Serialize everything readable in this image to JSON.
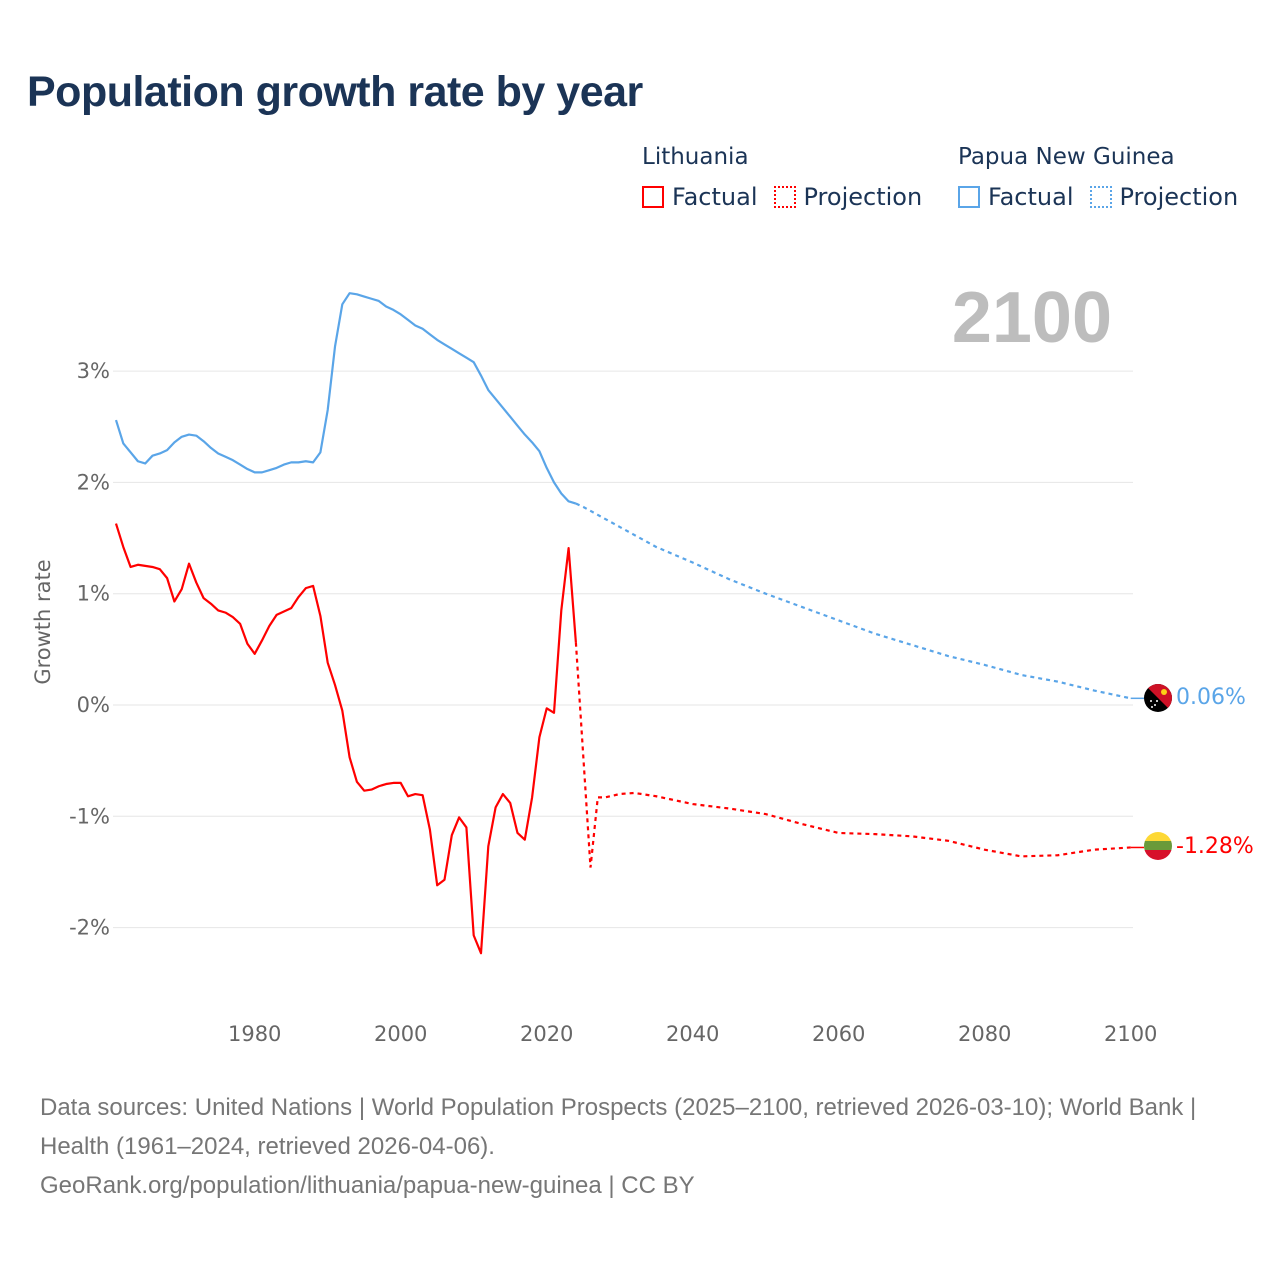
{
  "title": "Population growth rate by year",
  "legend": [
    {
      "country": "Lithuania",
      "factual": "Factual",
      "projection": "Projection",
      "color": "#ff0000"
    },
    {
      "country": "Papua New Guinea",
      "factual": "Factual",
      "projection": "Projection",
      "color": "#5aa5e8"
    }
  ],
  "chart_data": {
    "type": "line",
    "title": "Population growth rate by year",
    "year_label": "2100",
    "ylabel": "Growth rate",
    "xlabel": "",
    "xlim": [
      1961,
      2100
    ],
    "ylim": [
      -2.5,
      3.8
    ],
    "x_ticks": [
      "1980",
      "2000",
      "2020",
      "2040",
      "2060",
      "2080",
      "2100"
    ],
    "x_tick_values": [
      1980,
      2000,
      2020,
      2040,
      2060,
      2080,
      2100
    ],
    "y_ticks": [
      "3%",
      "2%",
      "1%",
      "0%",
      "-1%",
      "-2%"
    ],
    "y_tick_values": [
      3,
      2,
      1,
      0,
      -1,
      -2
    ],
    "grid": true,
    "series": [
      {
        "name": "Lithuania",
        "color": "#ff0000",
        "end_label": "-1.28%",
        "factual": {
          "x_start": 1961,
          "values": [
            1.63,
            1.42,
            1.24,
            1.26,
            1.25,
            1.24,
            1.22,
            1.14,
            0.93,
            1.04,
            1.27,
            1.1,
            0.96,
            0.91,
            0.85,
            0.83,
            0.79,
            0.73,
            0.55,
            0.46,
            0.58,
            0.71,
            0.81,
            0.84,
            0.87,
            0.97,
            1.05,
            1.07,
            0.8,
            0.38,
            0.18,
            -0.05,
            -0.47,
            -0.69,
            -0.77,
            -0.76,
            -0.73,
            -0.71,
            -0.7,
            -0.7,
            -0.82,
            -0.8,
            -0.81,
            -1.12,
            -1.62,
            -1.57,
            -1.17,
            -1.01,
            -1.1,
            -2.07,
            -2.23,
            -1.27,
            -0.92,
            -0.8,
            -0.88,
            -1.15,
            -1.21,
            -0.83,
            -0.29,
            -0.03,
            -0.07,
            0.85,
            1.41,
            0.56
          ]
        },
        "projection": {
          "x": [
            2025,
            2026,
            2027,
            2028,
            2030,
            2032,
            2035,
            2040,
            2045,
            2050,
            2055,
            2060,
            2065,
            2070,
            2075,
            2080,
            2085,
            2090,
            2095,
            2100
          ],
          "values": [
            -0.45,
            -1.46,
            -0.83,
            -0.83,
            -0.8,
            -0.79,
            -0.82,
            -0.89,
            -0.93,
            -0.98,
            -1.07,
            -1.15,
            -1.16,
            -1.18,
            -1.22,
            -1.3,
            -1.36,
            -1.35,
            -1.3,
            -1.28
          ]
        }
      },
      {
        "name": "Papua New Guinea",
        "color": "#5aa5e8",
        "end_label": "0.06%",
        "factual": {
          "x_start": 1961,
          "values": [
            2.56,
            2.35,
            2.27,
            2.19,
            2.17,
            2.24,
            2.26,
            2.29,
            2.36,
            2.41,
            2.43,
            2.42,
            2.37,
            2.31,
            2.26,
            2.23,
            2.2,
            2.16,
            2.12,
            2.09,
            2.09,
            2.11,
            2.13,
            2.16,
            2.18,
            2.18,
            2.19,
            2.18,
            2.27,
            2.65,
            3.22,
            3.6,
            3.7,
            3.69,
            3.67,
            3.65,
            3.63,
            3.58,
            3.55,
            3.51,
            3.46,
            3.41,
            3.38,
            3.33,
            3.28,
            3.24,
            3.2,
            3.16,
            3.12,
            3.08,
            2.96,
            2.83,
            2.75,
            2.67,
            2.59,
            2.51,
            2.43,
            2.36,
            2.28,
            2.13,
            2.0,
            1.9,
            1.83,
            1.81
          ]
        },
        "projection": {
          "x": [
            2025,
            2030,
            2035,
            2040,
            2045,
            2050,
            2055,
            2060,
            2065,
            2070,
            2075,
            2080,
            2085,
            2090,
            2095,
            2100
          ],
          "values": [
            1.78,
            1.6,
            1.42,
            1.28,
            1.13,
            1.0,
            0.88,
            0.76,
            0.64,
            0.54,
            0.44,
            0.36,
            0.27,
            0.21,
            0.13,
            0.06
          ]
        }
      }
    ]
  },
  "footer": {
    "sources": "Data sources: United Nations | World Population Prospects (2025–2100, retrieved 2026-03-10); World Bank | Health (1961–2024, retrieved 2026-04-06).",
    "credit": "GeoRank.org/population/lithuania/papua-new-guinea | CC BY"
  }
}
